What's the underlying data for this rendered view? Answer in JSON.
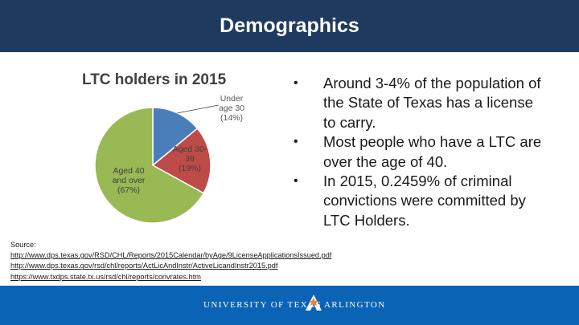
{
  "header": {
    "title": "Demographics"
  },
  "bullets": [
    "Around 3-4% of the population of the State of Texas has a license to carry.",
    "Most people who have a LTC are over the age of 40.",
    "In 2015, 0.2459% of criminal convictions were committed by LTC Holders."
  ],
  "sources": {
    "label": "Source:",
    "links": [
      "http://www.dps.texas.gov/RSD/CHL/Reports/2015Calendar/byAge/9LicenseApplicationsIssued.pdf",
      "http://www.dps.texas.gov/rsd/chl/reports/ActLicAndInstr/ActiveLicandInstr2015.pdf",
      "https://www.txdps.state.tx.us/rsd/chl/reports/convrates.htm"
    ]
  },
  "footer": {
    "left_text": "UNIVERSITY OF TEXAS",
    "right_text": "ARLINGTON"
  },
  "colors": {
    "header": "#1e3a5f",
    "footer": "#0b63b6",
    "slice_under30": "#4a7ebb",
    "slice_30_39": "#be4b48",
    "slice_40plus": "#98b954"
  },
  "chart_data": {
    "type": "pie",
    "title": "LTC holders in 2015",
    "slices": [
      {
        "label_lines": [
          "Under",
          "age 30",
          "(14%)"
        ],
        "value": 14,
        "color": "#4a7ebb"
      },
      {
        "label_lines": [
          "Aged 30-",
          "39",
          "(19%)"
        ],
        "value": 19,
        "color": "#be4b48"
      },
      {
        "label_lines": [
          "Aged 40",
          "and over",
          "(67%)"
        ],
        "value": 67,
        "color": "#98b954"
      }
    ]
  }
}
